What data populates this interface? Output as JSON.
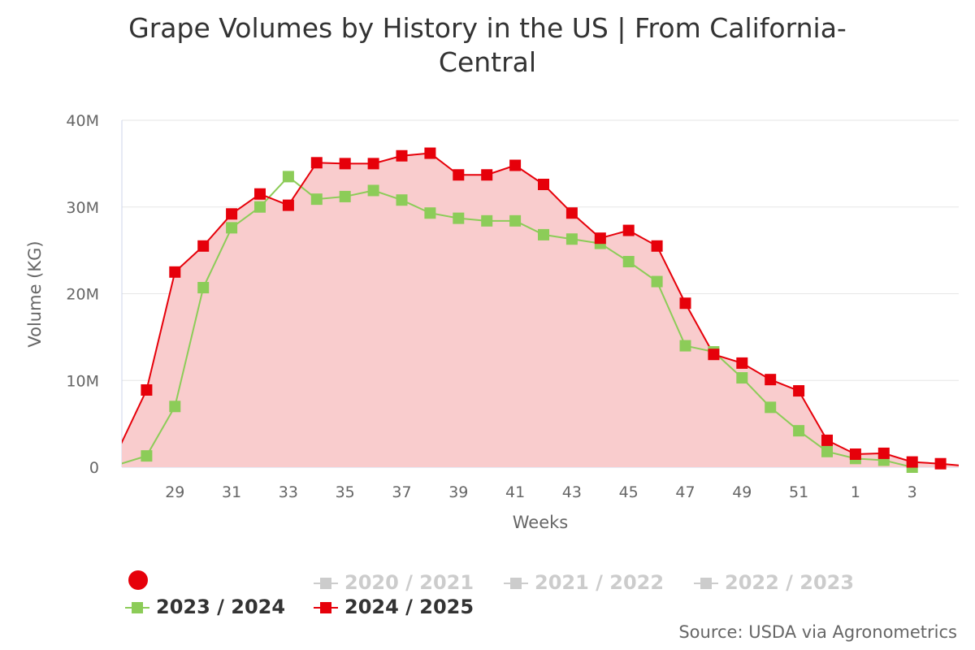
{
  "title": "Grape Volumes by History in the US | From California-Central",
  "source": "Source: USDA via Agronometrics",
  "colors": {
    "red": "#e6000a",
    "red_fill": "#f9cccd",
    "green": "#8ccc58",
    "hidden": "#cccccc",
    "grid": "#e6e6e6",
    "axis": "#ccd6eb"
  },
  "legend": {
    "marker_icon": "red-circle-icon",
    "items": [
      {
        "label": "2020 / 2021",
        "visible": false
      },
      {
        "label": "2021 / 2022",
        "visible": false
      },
      {
        "label": "2022 / 2023",
        "visible": false
      },
      {
        "label": "2023 / 2024",
        "visible": true
      },
      {
        "label": "2024 / 2025",
        "visible": true
      }
    ]
  },
  "chart_data": {
    "type": "area",
    "title": "Grape Volumes by History in the US | From California-Central",
    "xlabel": "Weeks",
    "ylabel": "Volume (KG)",
    "ylim": [
      0,
      40000000
    ],
    "y_ticks": [
      "0",
      "10M",
      "20M",
      "30M",
      "40M"
    ],
    "x_tick_labels": [
      "29",
      "31",
      "33",
      "35",
      "37",
      "39",
      "41",
      "43",
      "45",
      "47",
      "49",
      "51",
      "1",
      "3"
    ],
    "grid": true,
    "legend_position": "bottom",
    "categories": [
      "27",
      "28",
      "29",
      "30",
      "31",
      "32",
      "33",
      "34",
      "35",
      "36",
      "37",
      "38",
      "39",
      "40",
      "41",
      "42",
      "43",
      "44",
      "45",
      "46",
      "47",
      "48",
      "49",
      "50",
      "51",
      "52",
      "1",
      "2",
      "3",
      "4",
      "5"
    ],
    "series": [
      {
        "name": "2023 / 2024",
        "type": "line",
        "values": [
          0.3,
          1.3,
          7.0,
          20.7,
          27.6,
          30.0,
          33.5,
          30.9,
          31.2,
          31.9,
          30.8,
          29.3,
          28.7,
          28.4,
          28.4,
          26.8,
          26.3,
          25.8,
          23.7,
          21.4,
          14.0,
          13.3,
          10.3,
          6.9,
          4.2,
          1.8,
          1.0,
          0.8,
          0.0,
          null,
          null
        ],
        "unit": "million"
      },
      {
        "name": "2024 / 2025",
        "type": "area",
        "values": [
          2.0,
          8.9,
          22.5,
          25.5,
          29.2,
          31.5,
          30.2,
          35.1,
          35.0,
          35.0,
          35.9,
          36.2,
          33.7,
          33.7,
          34.8,
          32.6,
          29.3,
          26.4,
          27.3,
          25.5,
          18.9,
          13.0,
          12.0,
          10.1,
          8.8,
          3.1,
          1.5,
          1.6,
          0.6,
          0.4,
          0.1
        ],
        "unit": "million"
      }
    ]
  }
}
